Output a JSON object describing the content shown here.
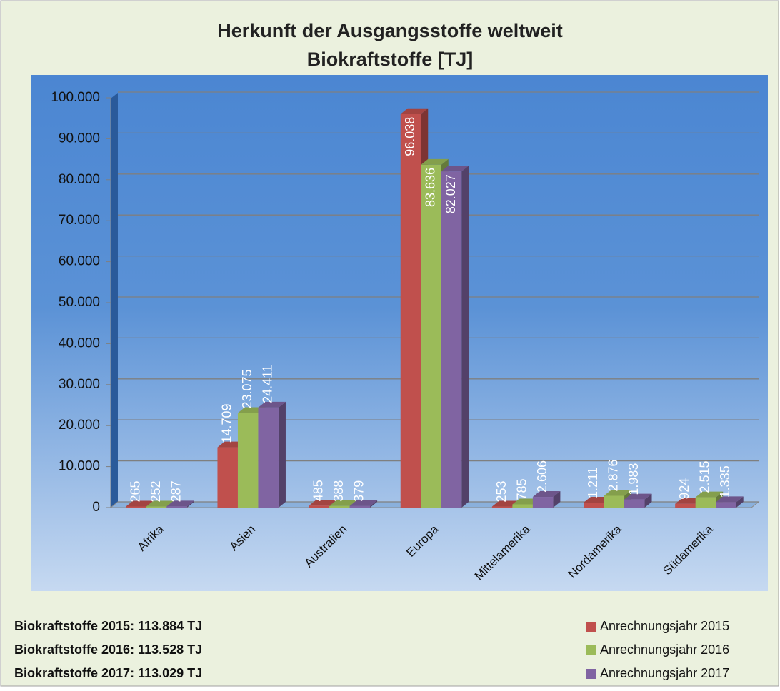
{
  "chart_data": {
    "type": "bar3d",
    "title": "Herkunft der Ausgangsstoffe weltweit",
    "subtitle": "Biokraftstoffe [TJ]",
    "categories": [
      "Afrika",
      "Asien",
      "Australien",
      "Europa",
      "Mittelamerika",
      "Nordamerika",
      "Südamerika"
    ],
    "series": [
      {
        "name": "Anrechnungsjahr 2015",
        "color": "#c0504d",
        "values": [
          265,
          14709,
          485,
          96038,
          253,
          1211,
          924
        ],
        "value_labels": [
          "265",
          "14.709",
          "485",
          "96.038",
          "253",
          "1.211",
          "924"
        ]
      },
      {
        "name": "Anrechnungsjahr 2016",
        "color": "#9bbb59",
        "values": [
          252,
          23075,
          388,
          83636,
          785,
          2876,
          2515
        ],
        "value_labels": [
          "252",
          "23.075",
          "388",
          "83.636",
          "785",
          "2.876",
          "2.515"
        ]
      },
      {
        "name": "Anrechnungsjahr 2017",
        "color": "#8064a2",
        "values": [
          287,
          24411,
          379,
          82027,
          2606,
          1983,
          1335
        ],
        "value_labels": [
          "287",
          "24.411",
          "379",
          "82.027",
          "2.606",
          "1.983",
          "1.335"
        ]
      }
    ],
    "ylim": [
      0,
      100000
    ],
    "yticks": [
      0,
      {
        "value": 10000,
        "label": "10.000"
      },
      {
        "value": 20000,
        "label": "20.000"
      },
      {
        "value": 30000,
        "label": "30.000"
      },
      {
        "value": 40000,
        "label": "40.000"
      },
      {
        "value": 50000,
        "label": "50.000"
      },
      {
        "value": 60000,
        "label": "60.000"
      },
      {
        "value": 70000,
        "label": "70.000"
      },
      {
        "value": 80000,
        "label": "80.000"
      },
      {
        "value": 90000,
        "label": "90.000"
      },
      {
        "value": 100000,
        "label": "100.000"
      }
    ],
    "grid": true,
    "legend": "bottom-right",
    "annotations": [
      "Biokraftstoffe 2015: 113.884 TJ",
      "Biokraftstoffe 2016: 113.528 TJ",
      "Biokraftstoffe 2017: 113.029 TJ"
    ]
  }
}
